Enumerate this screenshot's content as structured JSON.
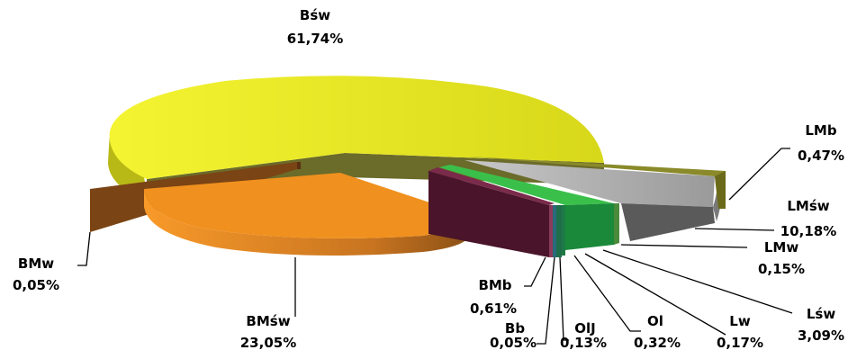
{
  "chart_data": {
    "type": "pie",
    "style": "3d-exploded",
    "title": "",
    "legend": "none",
    "slices": [
      {
        "name": "Bśw",
        "value": 61.74,
        "label": "61,74%",
        "color": "#e8e81a"
      },
      {
        "name": "LMb",
        "value": 0.47,
        "label": "0,47%",
        "color": "#8a8a2a"
      },
      {
        "name": "LMśw",
        "value": 10.18,
        "label": "10,18%",
        "color": "#bdbdbd"
      },
      {
        "name": "LMw",
        "value": 0.15,
        "label": "0,15%",
        "color": "#4a8a3a"
      },
      {
        "name": "Lśw",
        "value": 3.09,
        "label": "3,09%",
        "color": "#2eaa3a"
      },
      {
        "name": "Lw",
        "value": 0.17,
        "label": "0,17%",
        "color": "#1c7a44"
      },
      {
        "name": "Ol",
        "value": 0.32,
        "label": "0,32%",
        "color": "#1f6e4a"
      },
      {
        "name": "OlJ",
        "value": 0.13,
        "label": "0,13%",
        "color": "#2a6a7a"
      },
      {
        "name": "Bb",
        "value": 0.05,
        "label": "0,05%",
        "color": "#6a2a4a"
      },
      {
        "name": "BMb",
        "value": 0.61,
        "label": "0,61%",
        "color": "#5a1a32"
      },
      {
        "name": "BMśw",
        "value": 23.05,
        "label": "23,05%",
        "color": "#f0901e"
      },
      {
        "name": "BMw",
        "value": 0.05,
        "label": "0,05%",
        "color": "#7a4414"
      }
    ]
  }
}
